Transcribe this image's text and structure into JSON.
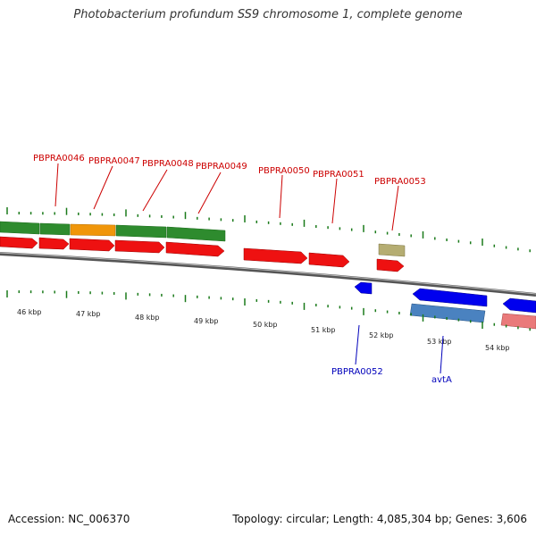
{
  "title": "Photobacterium profundum SS9 chromosome 1, complete genome",
  "accession": "Accession: NC_006370",
  "topology": "Topology: circular; Length: 4,085,304 bp; Genes: 3,606",
  "colors": {
    "plus_cds": "#ee1111",
    "minus_cds": "#0000ee",
    "green_feature": "#2e8b2e",
    "orange_feature": "#f0960a",
    "khaki_feature": "#b5ad72",
    "steelblue_feature": "#4a82c0",
    "pink_feature": "#ea7a7a",
    "tick": "#1a7a1a",
    "label_plus": "#cc0000",
    "label_minus": "#0000bb"
  },
  "kbp_labels": [
    "46 kbp",
    "47 kbp",
    "48 kbp",
    "49 kbp",
    "50 kbp",
    "51 kbp",
    "52 kbp",
    "53 kbp",
    "54 kbp"
  ],
  "gene_labels_top": [
    "PBPRA0046",
    "PBPRA0047",
    "PBPRA0048",
    "PBPRA0049",
    "PBPRA0050",
    "PBPRA0051",
    "PBPRA0053"
  ],
  "gene_labels_bottom": [
    "PBPRA0052",
    "avtA"
  ]
}
